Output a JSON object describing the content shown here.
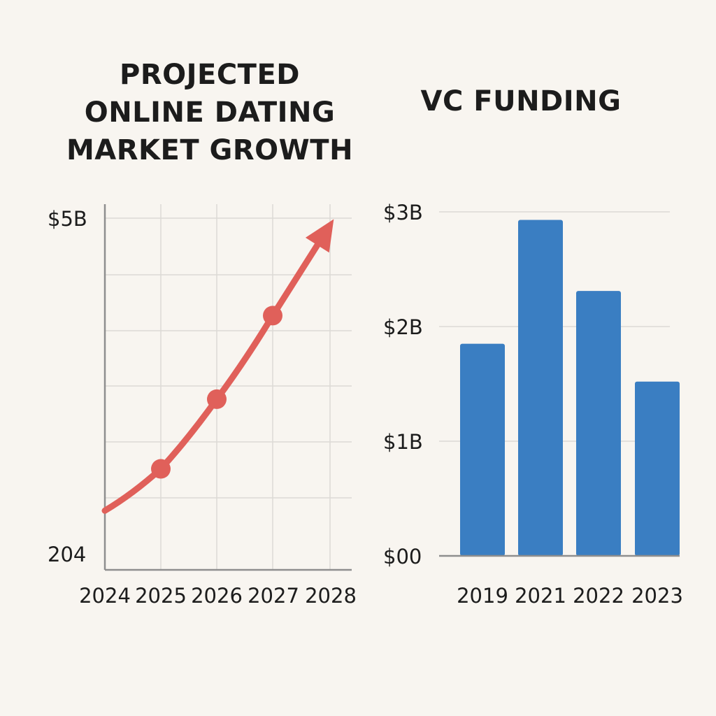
{
  "chart_data": [
    {
      "type": "line",
      "title": "PROJECTED\nONLINE DATING\nMARKET GROWTH",
      "x": [
        "2024",
        "2025",
        "2026",
        "2027",
        "2028"
      ],
      "y_tick_labels": [
        "$5B",
        "204"
      ],
      "series": [
        {
          "values": [
            1.2,
            1.8,
            2.8,
            4.0,
            5.3
          ]
        }
      ],
      "markers_at": [
        "2025",
        "2026",
        "2027"
      ],
      "ends_with_arrow": true,
      "grid": true,
      "colors": {
        "line": "#e0605a",
        "grid": "#dcdad5",
        "axis": "#8e8e8e"
      }
    },
    {
      "type": "bar",
      "title": "VC FUNDING",
      "categories": [
        "2019",
        "2021",
        "2022",
        "2023"
      ],
      "values": [
        1.85,
        2.93,
        2.31,
        1.52
      ],
      "y_tick_labels": [
        "$3B",
        "$2B",
        "$1B",
        "$00"
      ],
      "ylim": [
        0,
        3
      ],
      "grid": true,
      "colors": {
        "bar": "#3a7ec2",
        "grid": "#dcdad5",
        "axis": "#8e8e8e"
      }
    }
  ]
}
